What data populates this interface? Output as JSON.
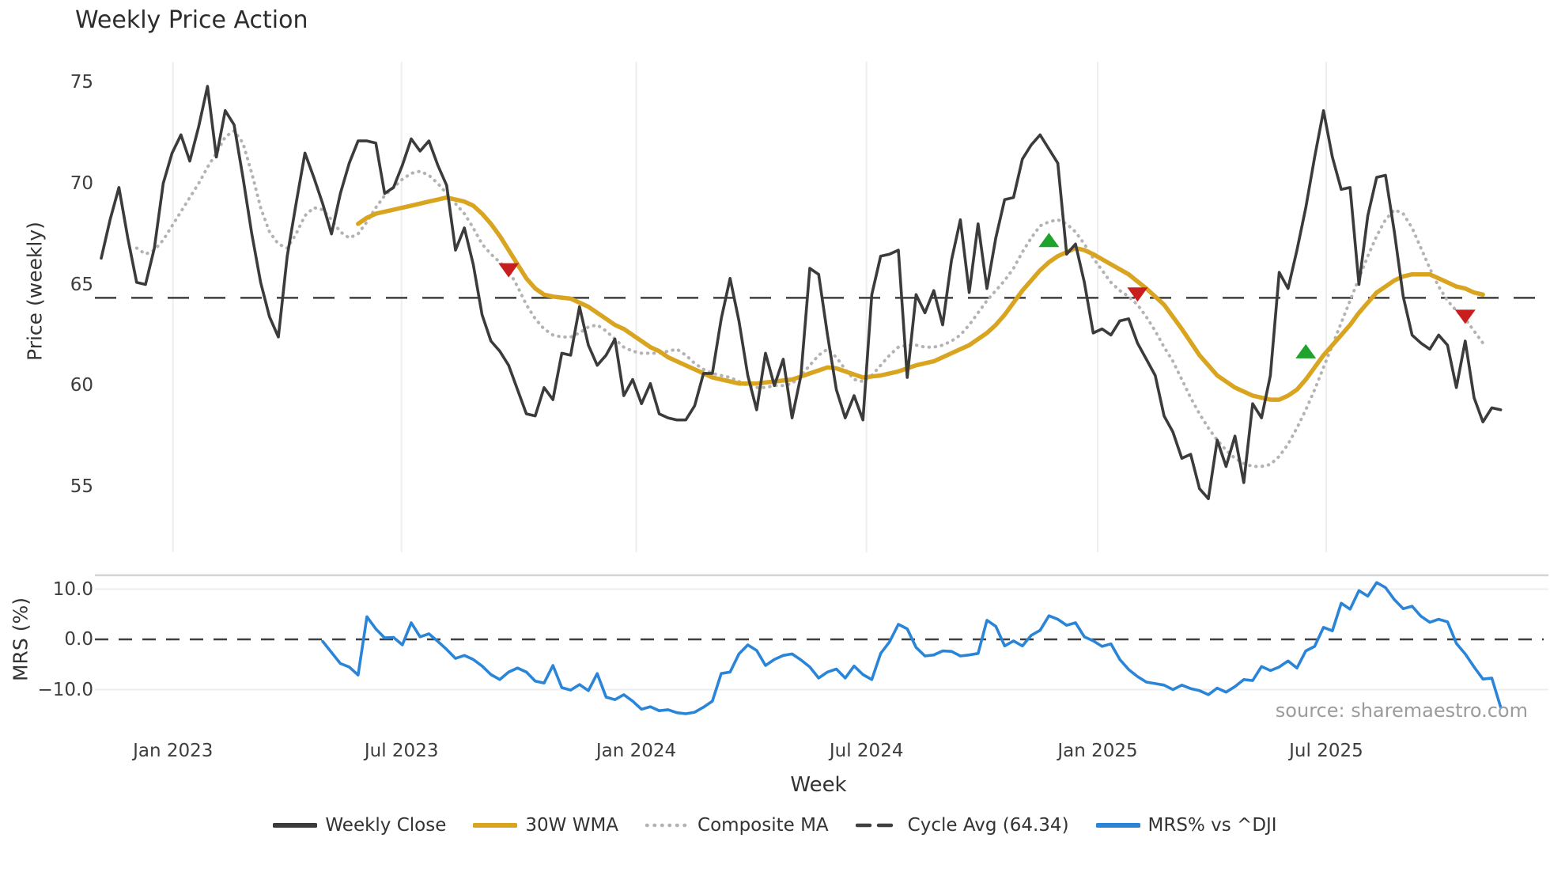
{
  "title": "Weekly Price Action",
  "source_note": "source: sharemaestro.com",
  "axes": {
    "price": {
      "label": "Price (weekly)",
      "ticks": [
        "75",
        "70",
        "65",
        "60",
        "55"
      ],
      "tick_values": [
        75,
        70,
        65,
        60,
        55
      ]
    },
    "mrs": {
      "label": "MRS (%)",
      "ticks": [
        "10.0",
        "0.0",
        "−10.0"
      ],
      "tick_values": [
        10,
        0,
        -10
      ]
    },
    "x": {
      "label": "Week",
      "ticks": [
        "Jan 2023",
        "Jul 2023",
        "Jan 2024",
        "Jul 2024",
        "Jan 2025",
        "Jul 2025"
      ],
      "tick_week_positions": [
        8.1,
        33.9,
        60.4,
        86.4,
        112.5,
        138.3
      ]
    }
  },
  "legend": [
    {
      "label": "Weekly Close",
      "color": "#3b3b3b",
      "style": "solid"
    },
    {
      "label": "30W WMA",
      "color": "#d9a521",
      "style": "solid"
    },
    {
      "label": "Composite MA",
      "color": "#b3b3b3",
      "style": "dotted"
    },
    {
      "label": "Cycle Avg (64.34)",
      "color": "#3f3f3f",
      "style": "dashed"
    },
    {
      "label": "MRS% vs ^DJI",
      "color": "#2a85d8",
      "style": "solid"
    }
  ],
  "colors": {
    "close": "#3b3b3b",
    "wma30": "#d9a521",
    "composite": "#b3b3b3",
    "cycle_dash": "#3f3f3f",
    "mrs": "#2a85d8",
    "grid": "#eeeeee",
    "panel_border": "#d4d4d4",
    "buy_marker": "#1fa32c",
    "sell_marker": "#c81e1e"
  },
  "chart_data": {
    "type": "line",
    "x_unit": "week_index",
    "weeks": 159,
    "price_ylim": [
      51.8,
      76.0
    ],
    "mrs_ylim": [
      -17.3,
      12.8
    ],
    "cycle_avg": 64.34,
    "mrs_zero": 0.0,
    "grid": {
      "vertical_in_price_panel": true,
      "horizontal_in_mrs_panel": [
        10,
        -10
      ]
    },
    "legend_position": "bottom-center",
    "series": [
      {
        "name": "Weekly Close",
        "panel": "price",
        "values": [
          66.3,
          68.2,
          69.8,
          67.3,
          65.1,
          65.0,
          66.8,
          70.0,
          71.5,
          72.4,
          71.1,
          72.8,
          74.8,
          71.3,
          73.6,
          72.9,
          70.3,
          67.5,
          65.1,
          63.4,
          62.4,
          66.4,
          69.0,
          71.5,
          70.3,
          69.0,
          67.5,
          69.5,
          71.0,
          72.1,
          72.1,
          72.0,
          69.5,
          69.8,
          70.9,
          72.2,
          71.6,
          72.1,
          70.9,
          69.9,
          66.7,
          67.8,
          66.0,
          63.5,
          62.2,
          61.7,
          61.0,
          59.8,
          58.6,
          58.5,
          59.9,
          59.3,
          61.6,
          61.5,
          63.9,
          62.0,
          61.0,
          61.5,
          62.3,
          59.5,
          60.3,
          59.1,
          60.1,
          58.6,
          58.4,
          58.3,
          58.3,
          59.0,
          60.6,
          60.6,
          63.3,
          65.3,
          63.2,
          60.5,
          58.8,
          61.6,
          60.0,
          61.3,
          58.4,
          60.5,
          65.8,
          65.5,
          62.5,
          59.8,
          58.4,
          59.5,
          58.3,
          64.5,
          66.4,
          66.5,
          66.7,
          60.4,
          64.5,
          63.6,
          64.7,
          63.0,
          66.2,
          68.2,
          64.6,
          68.0,
          64.8,
          67.3,
          69.2,
          69.3,
          71.2,
          71.9,
          72.4,
          71.7,
          71.0,
          66.5,
          67.0,
          65.1,
          62.6,
          62.8,
          62.5,
          63.2,
          63.3,
          62.1,
          61.3,
          60.5,
          58.5,
          57.7,
          56.4,
          56.6,
          54.9,
          54.4,
          57.3,
          56.0,
          57.5,
          55.2,
          59.1,
          58.4,
          60.5,
          65.6,
          64.8,
          66.7,
          68.8,
          71.3,
          73.6,
          71.3,
          69.7,
          69.8,
          65.0,
          68.4,
          70.3,
          70.4,
          67.6,
          64.4,
          62.5,
          62.1,
          61.8,
          62.5,
          62.0,
          59.9,
          62.2,
          59.4,
          58.2,
          58.9,
          58.8
        ]
      },
      {
        "name": "30W WMA",
        "panel": "price",
        "values": [
          null,
          null,
          null,
          null,
          null,
          null,
          null,
          null,
          null,
          null,
          null,
          null,
          null,
          null,
          null,
          null,
          null,
          null,
          null,
          null,
          null,
          null,
          null,
          null,
          null,
          null,
          null,
          null,
          null,
          68.0,
          68.3,
          68.5,
          68.6,
          68.7,
          68.8,
          68.9,
          69.0,
          69.1,
          69.2,
          69.3,
          69.2,
          69.1,
          68.9,
          68.5,
          68.0,
          67.4,
          66.7,
          66.0,
          65.3,
          64.8,
          64.5,
          64.4,
          64.35,
          64.3,
          64.1,
          63.9,
          63.6,
          63.3,
          63.0,
          62.8,
          62.5,
          62.2,
          61.9,
          61.7,
          61.4,
          61.2,
          61.0,
          60.8,
          60.6,
          60.4,
          60.3,
          60.2,
          60.1,
          60.1,
          60.1,
          60.15,
          60.2,
          60.25,
          60.3,
          60.45,
          60.6,
          60.75,
          60.9,
          60.85,
          60.7,
          60.55,
          60.4,
          60.45,
          60.5,
          60.6,
          60.7,
          60.85,
          61.0,
          61.1,
          61.2,
          61.4,
          61.6,
          61.8,
          62.0,
          62.3,
          62.6,
          63.0,
          63.5,
          64.1,
          64.7,
          65.2,
          65.7,
          66.1,
          66.4,
          66.6,
          66.8,
          66.7,
          66.5,
          66.25,
          66.0,
          65.75,
          65.5,
          65.15,
          64.8,
          64.4,
          64.0,
          63.4,
          62.8,
          62.15,
          61.5,
          61.0,
          60.5,
          60.2,
          59.9,
          59.7,
          59.5,
          59.4,
          59.3,
          59.3,
          59.5,
          59.8,
          60.3,
          60.9,
          61.5,
          62.0,
          62.5,
          63.0,
          63.6,
          64.1,
          64.6,
          64.9,
          65.2,
          65.4,
          65.5,
          65.5,
          65.5,
          65.3,
          65.1,
          64.9,
          64.8,
          64.6,
          64.5,
          null,
          null
        ]
      },
      {
        "name": "Composite MA",
        "panel": "price",
        "values": [
          null,
          null,
          null,
          null,
          66.8,
          66.5,
          66.7,
          67.2,
          67.9,
          68.6,
          69.3,
          70.0,
          70.8,
          71.5,
          72.3,
          72.6,
          72.0,
          70.5,
          68.8,
          67.6,
          67.0,
          66.8,
          67.5,
          68.4,
          68.8,
          68.7,
          68.2,
          67.6,
          67.3,
          67.5,
          68.1,
          68.8,
          69.4,
          69.8,
          70.2,
          70.5,
          70.6,
          70.4,
          70.0,
          69.5,
          69.0,
          68.5,
          67.8,
          67.0,
          66.5,
          66.1,
          65.7,
          64.9,
          64.0,
          63.3,
          62.8,
          62.5,
          62.4,
          62.4,
          62.6,
          62.9,
          63.0,
          62.7,
          62.3,
          61.9,
          61.7,
          61.6,
          61.6,
          61.6,
          61.7,
          61.8,
          61.5,
          61.1,
          60.8,
          60.6,
          60.5,
          60.4,
          60.2,
          60.0,
          59.9,
          59.9,
          60.0,
          60.0,
          60.1,
          60.5,
          61.0,
          61.5,
          61.8,
          61.4,
          60.8,
          60.3,
          60.2,
          60.5,
          61.0,
          61.5,
          61.9,
          62.0,
          62.0,
          61.9,
          61.9,
          62.0,
          62.2,
          62.5,
          63.0,
          63.6,
          64.2,
          64.7,
          65.2,
          65.8,
          66.6,
          67.3,
          67.9,
          68.1,
          68.2,
          68.0,
          67.6,
          67.0,
          66.3,
          65.7,
          65.1,
          64.7,
          64.4,
          64.0,
          63.4,
          62.7,
          61.9,
          61.2,
          60.3,
          59.4,
          58.6,
          57.9,
          57.3,
          56.8,
          56.4,
          56.15,
          56.0,
          56.0,
          56.1,
          56.5,
          57.1,
          57.9,
          58.8,
          59.8,
          60.9,
          62.0,
          63.1,
          64.2,
          65.3,
          66.4,
          67.4,
          68.2,
          68.7,
          68.5,
          67.8,
          66.8,
          65.8,
          64.9,
          64.2,
          63.7,
          63.3,
          62.7,
          62.1,
          null,
          null
        ]
      },
      {
        "name": "MRS% vs ^DJI",
        "panel": "mrs",
        "values": [
          null,
          null,
          null,
          null,
          null,
          null,
          null,
          null,
          null,
          null,
          null,
          null,
          null,
          null,
          null,
          null,
          null,
          null,
          null,
          null,
          null,
          null,
          null,
          null,
          null,
          -0.4,
          -2.6,
          -4.8,
          -5.5,
          -7.1,
          4.5,
          2.1,
          0.3,
          0.4,
          -1.1,
          3.3,
          0.5,
          1.1,
          -0.4,
          -2.0,
          -3.8,
          -3.2,
          -4.0,
          -5.3,
          -7.0,
          -8.0,
          -6.5,
          -5.7,
          -6.5,
          -8.3,
          -8.7,
          -5.2,
          -9.6,
          -10.1,
          -9.0,
          -10.2,
          -6.8,
          -11.5,
          -12.0,
          -11.0,
          -12.3,
          -13.9,
          -13.4,
          -14.2,
          -14.0,
          -14.6,
          -14.8,
          -14.5,
          -13.5,
          -12.3,
          -6.8,
          -6.5,
          -2.9,
          -1.1,
          -2.2,
          -5.2,
          -4.0,
          -3.2,
          -2.9,
          -4.1,
          -5.5,
          -7.7,
          -6.5,
          -5.9,
          -7.7,
          -5.3,
          -7.0,
          -8.0,
          -2.8,
          -0.5,
          3.0,
          2.1,
          -1.6,
          -3.3,
          -3.1,
          -2.3,
          -2.4,
          -3.3,
          -3.1,
          -2.8,
          3.8,
          2.6,
          -1.3,
          -0.3,
          -1.3,
          0.8,
          1.8,
          4.7,
          4.0,
          2.8,
          3.3,
          0.5,
          -0.3,
          -1.4,
          -0.9,
          -4.0,
          -6.0,
          -7.4,
          -8.5,
          -8.8,
          -9.1,
          -10.0,
          -9.1,
          -9.8,
          -10.2,
          -11.0,
          -9.7,
          -10.5,
          -9.4,
          -8.0,
          -8.2,
          -5.4,
          -6.2,
          -5.5,
          -4.3,
          -5.7,
          -2.3,
          -1.4,
          2.4,
          1.7,
          7.2,
          6.0,
          9.7,
          8.6,
          11.3,
          10.3,
          7.9,
          6.1,
          6.6,
          4.6,
          3.4,
          4.0,
          3.5,
          -0.8,
          -2.9,
          -5.5,
          -7.9,
          -7.7,
          -13.5
        ]
      }
    ],
    "markers": [
      {
        "week": 46,
        "price": 65.7,
        "type": "sell"
      },
      {
        "week": 107,
        "price": 67.2,
        "type": "buy"
      },
      {
        "week": 117,
        "price": 64.5,
        "type": "sell"
      },
      {
        "week": 136,
        "price": 61.7,
        "type": "buy"
      },
      {
        "week": 154,
        "price": 63.4,
        "type": "sell"
      }
    ]
  }
}
